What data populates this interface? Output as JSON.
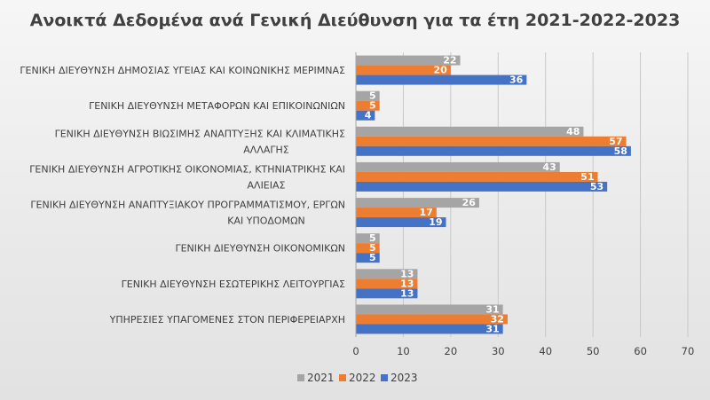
{
  "chart_data": {
    "type": "bar",
    "orientation": "horizontal",
    "title": "Ανοικτά Δεδομένα ανά Γενική Διεύθυνση για τα έτη 2021-2022-2023",
    "categories": [
      "ΓΕΝΙΚΗ ΔΙΕΥΘΥΝΣΗ ΔΗΜΟΣΙΑΣ ΥΓΕΙΑΣ ΚΑΙ ΚΟΙΝΩΝΙΚΗΣ ΜΕΡΙΜΝΑΣ",
      "ΓΕΝΙΚΗ ΔΙΕΥΘΥΝΣΗ ΜΕΤΑΦΟΡΩΝ ΚΑΙ ΕΠΙΚΟΙΝΩΝΙΩΝ",
      "ΓΕΝΙΚΗ ΔΙΕΥΘΥΝΣΗ ΒΙΩΣΙΜΗΣ ΑΝΑΠΤΥΞΗΣ ΚΑΙ ΚΛΙΜΑΤΙΚΗΣ ΑΛΛΑΓΗΣ",
      "ΓΕΝΙΚΗ ΔΙΕΥΘΥΝΣΗ ΑΓΡΟΤΙΚΗΣ ΟΙΚΟΝΟΜΙΑΣ, ΚΤΗΝΙΑΤΡΙΚΗΣ ΚΑΙ ΑΛΙΕΙΑΣ",
      "ΓΕΝΙΚΗ ΔΙΕΥΘΥΝΣΗ ΑΝΑΠΤΥΞΙΑΚΟΥ ΠΡΟΓΡΑΜΜΑΤΙΣΜΟΥ, ΕΡΓΩΝ ΚΑΙ ΥΠΟΔΟΜΩΝ",
      "ΓΕΝΙΚΗ ΔΙΕΥΘΥΝΣΗ ΟΙΚΟΝΟΜΙΚΩΝ",
      "ΓΕΝΙΚΗ ΔΙΕΥΘΥΝΣΗ ΕΣΩΤΕΡΙΚΗΣ ΛΕΙΤΟΥΡΓΙΑΣ",
      "ΥΠΗΡΕΣΙΕΣ ΥΠΑΓΟΜΕΝΕΣ ΣΤΟΝ ΠΕΡΙΦΕΡΕΙΑΡΧΗ"
    ],
    "category_lines": [
      [
        "ΓΕΝΙΚΗ ΔΙΕΥΘΥΝΣΗ ΔΗΜΟΣΙΑΣ ΥΓΕΙΑΣ ΚΑΙ ΚΟΙΝΩΝΙΚΗΣ ΜΕΡΙΜΝΑΣ"
      ],
      [
        "ΓΕΝΙΚΗ ΔΙΕΥΘΥΝΣΗ ΜΕΤΑΦΟΡΩΝ ΚΑΙ ΕΠΙΚΟΙΝΩΝΙΩΝ"
      ],
      [
        "ΓΕΝΙΚΗ ΔΙΕΥΘΥΝΣΗ ΒΙΩΣΙΜΗΣ ΑΝΑΠΤΥΞΗΣ ΚΑΙ ΚΛΙΜΑΤΙΚΗΣ",
        "ΑΛΛΑΓΗΣ"
      ],
      [
        "ΓΕΝΙΚΗ ΔΙΕΥΘΥΝΣΗ ΑΓΡΟΤΙΚΗΣ ΟΙΚΟΝΟΜΙΑΣ, ΚΤΗΝΙΑΤΡΙΚΗΣ ΚΑΙ",
        "ΑΛΙΕΙΑΣ"
      ],
      [
        "ΓΕΝΙΚΗ ΔΙΕΥΘΥΝΣΗ ΑΝΑΠΤΥΞΙΑΚΟΥ ΠΡΟΓΡΑΜΜΑΤΙΣΜΟΥ, ΕΡΓΩΝ",
        "ΚΑΙ ΥΠΟΔΟΜΩΝ"
      ],
      [
        "ΓΕΝΙΚΗ ΔΙΕΥΘΥΝΣΗ ΟΙΚΟΝΟΜΙΚΩΝ"
      ],
      [
        "ΓΕΝΙΚΗ ΔΙΕΥΘΥΝΣΗ ΕΣΩΤΕΡΙΚΗΣ ΛΕΙΤΟΥΡΓΙΑΣ"
      ],
      [
        "ΥΠΗΡΕΣΙΕΣ ΥΠΑΓΟΜΕΝΕΣ ΣΤΟΝ ΠΕΡΙΦΕΡΕΙΑΡΧΗ"
      ]
    ],
    "series": [
      {
        "name": "2021",
        "color": "#a5a5a5",
        "values": [
          22,
          5,
          48,
          43,
          26,
          5,
          13,
          31
        ]
      },
      {
        "name": "2022",
        "color": "#ed7d31",
        "values": [
          20,
          5,
          57,
          51,
          17,
          5,
          13,
          32
        ]
      },
      {
        "name": "2023",
        "color": "#4472c4",
        "values": [
          36,
          4,
          58,
          53,
          19,
          5,
          13,
          31
        ]
      }
    ],
    "xlim": [
      0,
      70
    ],
    "xticks": [
      0,
      10,
      20,
      30,
      40,
      50,
      60,
      70
    ],
    "grid": true,
    "legend_position": "bottom"
  }
}
